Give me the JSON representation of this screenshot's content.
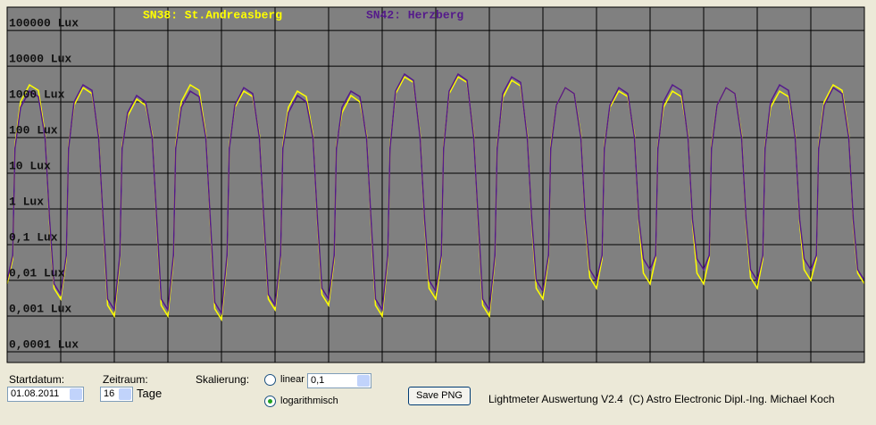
{
  "chart_data": {
    "type": "line",
    "log_y": true,
    "grid": true,
    "background": "#808080",
    "grid_color": "#000000",
    "ylim": [
      5e-05,
      450000
    ],
    "yticks": [
      {
        "value": 100000,
        "label": "100000 Lux"
      },
      {
        "value": 10000,
        "label": "10000 Lux"
      },
      {
        "value": 1000,
        "label": "1000 Lux"
      },
      {
        "value": 100,
        "label": "100 Lux"
      },
      {
        "value": 10,
        "label": "10 Lux"
      },
      {
        "value": 1,
        "label": "1 Lux"
      },
      {
        "value": 0.1,
        "label": "0,1 Lux"
      },
      {
        "value": 0.01,
        "label": "0,01 Lux"
      },
      {
        "value": 0.001,
        "label": "0,001 Lux"
      },
      {
        "value": 0.0001,
        "label": "0,0001 Lux"
      }
    ],
    "xlim": [
      0,
      384
    ],
    "xticks": [
      0,
      24,
      48,
      72,
      96,
      120,
      144,
      168,
      192,
      216,
      240,
      264,
      288,
      312,
      336,
      360,
      384
    ],
    "x": [
      0,
      2.5,
      3.5,
      6,
      10,
      14,
      17,
      19,
      21,
      24,
      26.5,
      27.5,
      30,
      34,
      38,
      41,
      43,
      45,
      48,
      50.5,
      51.5,
      54,
      58,
      62,
      65,
      67,
      69,
      72,
      74.5,
      75.5,
      78,
      82,
      86,
      89,
      91,
      93,
      96,
      98.5,
      99.5,
      102,
      106,
      110,
      113,
      115,
      117,
      120,
      122.5,
      123.5,
      126,
      130,
      134,
      137,
      139,
      141,
      144,
      146.5,
      147.5,
      150,
      154,
      158,
      161,
      163,
      165,
      168,
      170.5,
      171.5,
      174,
      178,
      182,
      185,
      187,
      189,
      192,
      194.5,
      195.5,
      198,
      202,
      206,
      209,
      211,
      213,
      216,
      218.5,
      219.5,
      222,
      226,
      230,
      233,
      235,
      237,
      240,
      242.5,
      243.5,
      246,
      250,
      254,
      257,
      259,
      261,
      264,
      266.5,
      267.5,
      270,
      274,
      278,
      281,
      283,
      285,
      288,
      290.5,
      291.5,
      294,
      298,
      302,
      305,
      307,
      309,
      312,
      314.5,
      315.5,
      318,
      322,
      326,
      329,
      331,
      333,
      336,
      338.5,
      339.5,
      342,
      346,
      350,
      353,
      355,
      357,
      360,
      362.5,
      363.5,
      366,
      370,
      374,
      377,
      379,
      381,
      384
    ],
    "series": [
      {
        "name": "SN38: St.Andreasberg",
        "color": "#ffff00",
        "values": [
          0.008,
          0.04,
          60,
          1000,
          3000,
          2100,
          120,
          0.4,
          0.006,
          0.003,
          0.04,
          60,
          800,
          2500,
          1700,
          120,
          0.4,
          0.002,
          0.001,
          0.04,
          60,
          400,
          1200,
          800,
          120,
          0.4,
          0.002,
          0.001,
          0.04,
          60,
          1000,
          3000,
          2100,
          120,
          0.4,
          0.0016,
          0.0008,
          0.04,
          60,
          700,
          2000,
          1400,
          120,
          0.4,
          0.003,
          0.0015,
          0.04,
          60,
          700,
          2000,
          1400,
          120,
          0.4,
          0.004,
          0.002,
          0.04,
          60,
          500,
          1500,
          1000,
          120,
          0.4,
          0.002,
          0.001,
          0.04,
          60,
          1700,
          5000,
          3500,
          120,
          0.4,
          0.006,
          0.003,
          0.04,
          60,
          1700,
          5000,
          3500,
          120,
          0.4,
          0.002,
          0.001,
          0.04,
          60,
          1300,
          4000,
          2800,
          120,
          0.4,
          0.006,
          0.003,
          0.04,
          60,
          800,
          2500,
          1700,
          120,
          0.4,
          0.012,
          0.006,
          0.04,
          60,
          700,
          2000,
          1400,
          120,
          0.4,
          0.016,
          0.008,
          0.04,
          60,
          700,
          2000,
          1400,
          120,
          0.4,
          0.016,
          0.008,
          0.04,
          60,
          800,
          2500,
          1700,
          120,
          0.4,
          0.012,
          0.006,
          0.04,
          60,
          700,
          2000,
          1400,
          120,
          0.4,
          0.02,
          0.01,
          0.04,
          60,
          1000,
          3000,
          2100,
          120,
          0.4,
          0.016,
          0.008
        ]
      },
      {
        "name": "SN42: Herzberg",
        "color": "#551a8b",
        "values": [
          0.01,
          0.05,
          50,
          700,
          2000,
          1400,
          100,
          0.5,
          0.008,
          0.004,
          0.05,
          50,
          1000,
          3000,
          2100,
          100,
          0.5,
          0.003,
          0.0015,
          0.05,
          50,
          500,
          1500,
          1000,
          100,
          0.5,
          0.003,
          0.0015,
          0.05,
          50,
          700,
          2000,
          1400,
          100,
          0.5,
          0.0024,
          0.0012,
          0.05,
          50,
          800,
          2500,
          1700,
          100,
          0.5,
          0.004,
          0.002,
          0.05,
          50,
          500,
          1500,
          1000,
          100,
          0.5,
          0.006,
          0.003,
          0.05,
          50,
          700,
          2000,
          1400,
          100,
          0.5,
          0.003,
          0.0015,
          0.05,
          50,
          2000,
          6000,
          4000,
          100,
          0.5,
          0.01,
          0.005,
          0.05,
          50,
          2000,
          6000,
          4000,
          100,
          0.5,
          0.003,
          0.0015,
          0.05,
          50,
          1700,
          5000,
          3500,
          100,
          0.5,
          0.01,
          0.005,
          0.05,
          50,
          800,
          2500,
          1700,
          100,
          0.5,
          0.02,
          0.01,
          0.05,
          50,
          800,
          2500,
          1700,
          100,
          0.5,
          0.04,
          0.02,
          0.05,
          50,
          1000,
          3000,
          2100,
          100,
          0.5,
          0.04,
          0.02,
          0.05,
          50,
          800,
          2500,
          1700,
          100,
          0.5,
          0.02,
          0.01,
          0.05,
          50,
          1000,
          3000,
          2100,
          100,
          0.5,
          0.04,
          0.02,
          0.05,
          50,
          800,
          2500,
          1700,
          100,
          0.5,
          0.02,
          0.01
        ]
      }
    ]
  },
  "controls": {
    "start_label": "Startdatum:",
    "start_value": "01.08.2011",
    "range_label": "Zeitraum:",
    "range_value": "16",
    "range_unit": "Tage",
    "scale_label": "Skalierung:",
    "linear_label": "linear",
    "linear_value": "0,1",
    "log_label": "logarithmisch",
    "save_button": "Save PNG",
    "footer": "Lightmeter Auswertung V2.4  (C) Astro Electronic Dipl.-Ing. Michael Koch"
  }
}
